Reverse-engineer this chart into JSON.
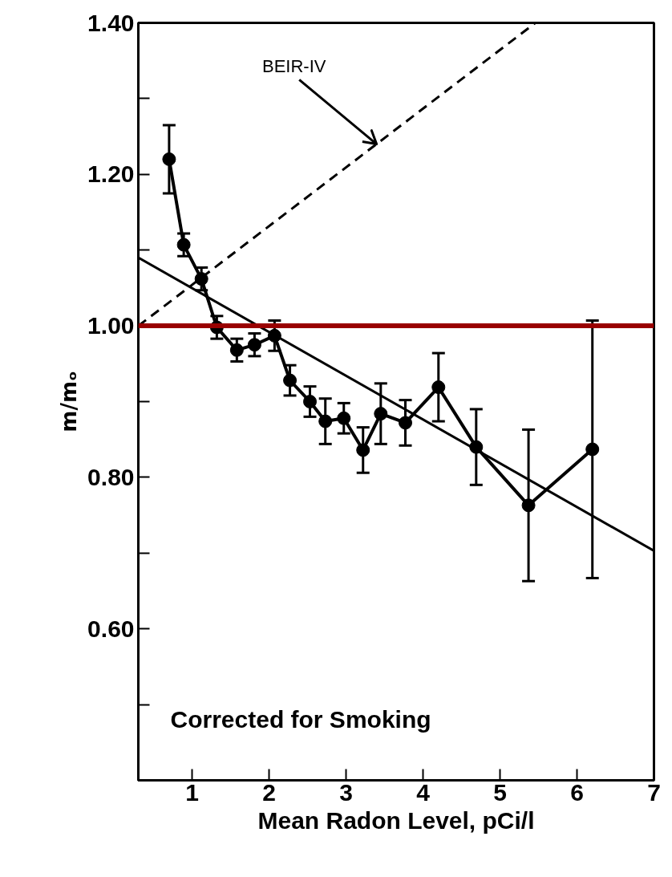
{
  "chart_data": {
    "type": "line",
    "xlabel": "Mean Radon Level, pCi/l",
    "ylabel": "m/mₒ",
    "xlim": [
      0.3,
      7
    ],
    "ylim": [
      0.4,
      1.4
    ],
    "xticks": [
      1,
      2,
      3,
      4,
      5,
      6,
      7
    ],
    "yticks": [
      {
        "value": 0.5,
        "label": null
      },
      {
        "value": 0.6,
        "label": "0.60"
      },
      {
        "value": 0.7,
        "label": null
      },
      {
        "value": 0.8,
        "label": "0.80"
      },
      {
        "value": 0.9,
        "label": null
      },
      {
        "value": 1.0,
        "label": "1.00"
      },
      {
        "value": 1.1,
        "label": null
      },
      {
        "value": 1.2,
        "label": "1.20"
      },
      {
        "value": 1.3,
        "label": null
      },
      {
        "value": 1.4,
        "label": "1.40"
      }
    ],
    "grid": false,
    "series": [
      {
        "color": "#000000",
        "marker": "circle",
        "line_style": "solid",
        "x": [
          0.7,
          0.89,
          1.12,
          1.32,
          1.58,
          1.81,
          2.07,
          2.27,
          2.53,
          2.73,
          2.97,
          3.22,
          3.45,
          3.77,
          4.2,
          4.69,
          5.37,
          6.2
        ],
        "values": [
          1.22,
          1.107,
          1.062,
          0.998,
          0.968,
          0.975,
          0.987,
          0.928,
          0.9,
          0.874,
          0.878,
          0.836,
          0.884,
          0.872,
          0.919,
          0.84,
          0.763,
          0.837
        ],
        "errors": [
          0.045,
          0.015,
          0.015,
          0.015,
          0.015,
          0.015,
          0.02,
          0.02,
          0.02,
          0.03,
          0.02,
          0.03,
          0.04,
          0.03,
          0.045,
          0.05,
          0.1,
          0.17
        ]
      },
      {
        "color": "#000000",
        "marker": "none",
        "line_style": "solid",
        "x": [
          0.3,
          7
        ],
        "values": [
          1.09,
          0.703
        ]
      },
      {
        "name": "BEIR-IV",
        "color": "#000000",
        "marker": "none",
        "line_style": "dashed",
        "x": [
          0.3,
          5.46
        ],
        "values": [
          1.0,
          1.4
        ]
      }
    ],
    "ref_lines": [
      {
        "axis": "y",
        "value": 1.0,
        "color": "#990000"
      }
    ],
    "annotations": [
      "Corrected for Smoking"
    ]
  }
}
